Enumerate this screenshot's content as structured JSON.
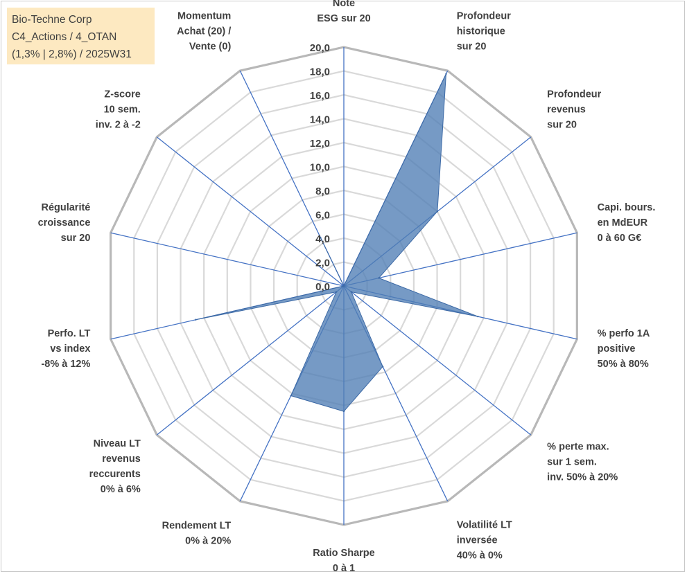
{
  "header": {
    "line1": "Bio-Techne Corp",
    "line2": "C4_Actions / 4_OTAN",
    "line3": "(1,3% | 2,8%) / 2025W31"
  },
  "colors": {
    "grid": "#c3c3c3",
    "spoke": "#4472c4",
    "fill": "#4f7db5",
    "text": "#404040",
    "info_box_bg": "#fde9c1"
  },
  "chart_data": {
    "type": "radar",
    "rmin": 0,
    "rmax": 20,
    "tick_step": 2,
    "ticks": [
      "0,0",
      "2,0",
      "4,0",
      "6,0",
      "8,0",
      "10,0",
      "12,0",
      "14,0",
      "16,0",
      "18,0",
      "20,0"
    ],
    "axes": [
      [
        "Note",
        "ESG sur 20"
      ],
      [
        "Profondeur",
        "historique",
        "sur 20"
      ],
      [
        "Profondeur",
        "revenus",
        "sur 20"
      ],
      [
        "Capi. bours.",
        "en MdEUR",
        "0 à 60 G€"
      ],
      [
        "% perfo 1A",
        "positive",
        "50% à 80%"
      ],
      [
        "% perte max.",
        "sur 1 sem.",
        "inv. 50% à 20%"
      ],
      [
        "Volatilité LT",
        "inversée",
        "40% à 0%"
      ],
      [
        "Ratio Sharpe",
        "0 à 1"
      ],
      [
        "Rendement LT",
        "0% à 20%"
      ],
      [
        "Niveau LT",
        "revenus",
        "reccurents",
        "0% à 6%"
      ],
      [
        "Perfo. LT",
        "vs index",
        "-8% à 12%"
      ],
      [
        "Régularité",
        "croissance",
        "sur 20"
      ],
      [
        "Z-score",
        "10 sem.",
        "inv. 2 à -2"
      ],
      [
        "Momentum",
        "Achat (20) /",
        "Vente (0)"
      ]
    ],
    "values": [
      0,
      19.7,
      10,
      3,
      11.5,
      0.8,
      7.5,
      10.5,
      10.2,
      0.8,
      12.7,
      0,
      0,
      4.5
    ],
    "grid": true,
    "legend": "none"
  }
}
